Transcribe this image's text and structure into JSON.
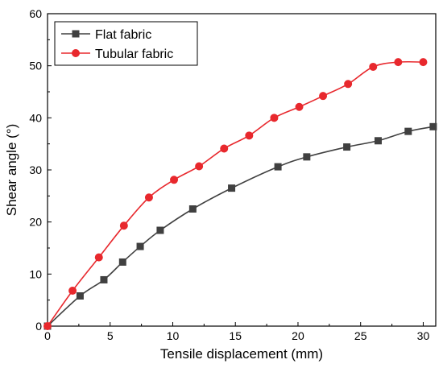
{
  "chart_data": {
    "type": "line",
    "title": "",
    "xlabel": "Tensile displacement (mm)",
    "ylabel": "Shear angle (°)",
    "xlim": [
      0,
      31
    ],
    "ylim": [
      0,
      60
    ],
    "xticks": [
      0,
      5,
      10,
      15,
      20,
      25,
      30
    ],
    "yticks": [
      0,
      10,
      20,
      30,
      40,
      50,
      60
    ],
    "xtick_labels": [
      "0",
      "5",
      "10",
      "15",
      "20",
      "25",
      "30"
    ],
    "ytick_labels": [
      "0",
      "10",
      "20",
      "30",
      "40",
      "50",
      "60"
    ],
    "grid": false,
    "legend_position": "top-left",
    "series": [
      {
        "name": "Flat fabric",
        "color": "#404040",
        "marker": "square",
        "x": [
          0,
          2.6,
          4.5,
          6.0,
          7.4,
          9.0,
          11.6,
          14.7,
          18.4,
          20.7,
          23.9,
          26.4,
          28.8,
          30.8
        ],
        "y": [
          0,
          5.8,
          8.9,
          12.3,
          15.3,
          18.4,
          22.5,
          26.5,
          30.6,
          32.5,
          34.4,
          35.6,
          37.4,
          38.3
        ]
      },
      {
        "name": "Tubular fabric",
        "color": "#e8282d",
        "marker": "circle",
        "x": [
          0,
          2.0,
          4.1,
          6.1,
          8.1,
          10.1,
          12.1,
          14.1,
          16.1,
          18.1,
          20.1,
          22.0,
          24.0,
          26.0,
          28.0,
          30.0
        ],
        "y": [
          0,
          6.8,
          13.2,
          19.3,
          24.7,
          28.1,
          30.7,
          34.1,
          36.6,
          40.0,
          42.1,
          44.2,
          46.5,
          49.8,
          50.7,
          50.7
        ]
      }
    ]
  }
}
